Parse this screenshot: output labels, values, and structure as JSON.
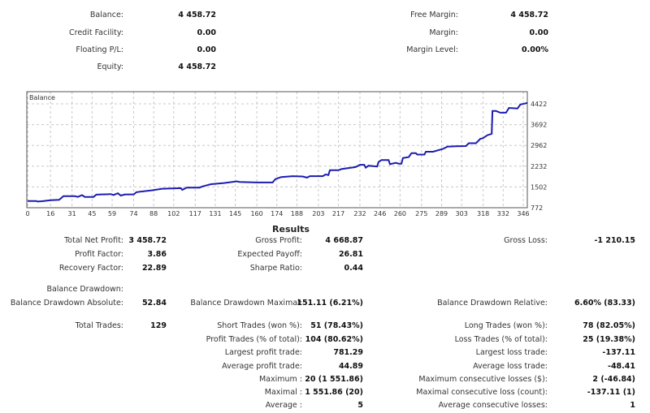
{
  "account": {
    "left": [
      {
        "label": "Balance:",
        "value": "4 458.72"
      },
      {
        "label": "Credit Facility:",
        "value": "0.00"
      },
      {
        "label": "Floating P/L:",
        "value": "0.00"
      },
      {
        "label": "Equity:",
        "value": "4 458.72"
      }
    ],
    "right": [
      {
        "label": "Free Margin:",
        "value": "4 458.72"
      },
      {
        "label": "Margin:",
        "value": "0.00"
      },
      {
        "label": "Margin Level:",
        "value": "0.00%"
      }
    ]
  },
  "chart_data": {
    "type": "line",
    "title": "Balance",
    "series": [
      {
        "color": "#1c1cb0",
        "x": [
          0,
          6,
          7,
          10,
          16,
          22,
          25,
          33,
          35,
          38,
          40,
          46,
          48,
          58,
          60,
          63,
          65,
          68,
          74,
          76,
          87,
          94,
          107,
          108,
          111,
          120,
          122,
          128,
          137,
          146,
          148,
          160,
          171,
          173,
          177,
          185,
          192,
          195,
          197,
          206,
          208,
          210,
          211,
          217,
          219,
          229,
          232,
          235,
          236,
          238,
          244,
          245,
          247,
          252,
          253,
          257,
          259,
          261,
          262,
          266,
          268,
          271,
          272,
          277,
          278,
          283,
          290,
          293,
          299,
          306,
          308,
          313,
          316,
          318,
          321,
          324,
          324.5,
          327,
          330,
          334,
          336,
          342,
          344,
          347,
          349
        ],
        "y": [
          1010,
          1010,
          990,
          1000,
          1037,
          1048,
          1180,
          1180,
          1150,
          1215,
          1150,
          1150,
          1230,
          1250,
          1220,
          1280,
          1200,
          1240,
          1240,
          1320,
          1385,
          1440,
          1460,
          1400,
          1480,
          1480,
          1520,
          1600,
          1640,
          1700,
          1680,
          1660,
          1660,
          1780,
          1850,
          1880,
          1870,
          1830,
          1880,
          1880,
          1940,
          1920,
          2090,
          2090,
          2130,
          2200,
          2280,
          2280,
          2180,
          2250,
          2220,
          2380,
          2450,
          2450,
          2300,
          2350,
          2320,
          2320,
          2520,
          2550,
          2690,
          2690,
          2640,
          2640,
          2740,
          2740,
          2840,
          2920,
          2930,
          2940,
          3040,
          3040,
          3190,
          3220,
          3320,
          3370,
          4170,
          4170,
          4110,
          4110,
          4280,
          4260,
          4400,
          4430,
          4459
        ]
      }
    ],
    "xticks": [
      0,
      16,
      31,
      45,
      59,
      74,
      88,
      102,
      117,
      131,
      145,
      160,
      174,
      188,
      203,
      217,
      232,
      246,
      260,
      275,
      289,
      303,
      318,
      332,
      346
    ],
    "yticks": [
      772,
      1502,
      2232,
      2962,
      3692,
      4422
    ],
    "xlim": [
      0,
      349
    ],
    "ylim": [
      772,
      4480
    ],
    "grid": true
  },
  "results": {
    "title": "Results",
    "col1": [
      {
        "row": 0,
        "label": "Total Net Profit:",
        "value": "3 458.72"
      },
      {
        "row": 1,
        "label": "Profit Factor:",
        "value": "3.86"
      },
      {
        "row": 2,
        "label": "Recovery Factor:",
        "value": "22.89"
      },
      {
        "row": 3,
        "label": "Balance Drawdown:",
        "value": ""
      },
      {
        "row": 4,
        "label": "Balance Drawdown Absolute:",
        "value": "52.84"
      },
      {
        "row": 5,
        "label": "Total Trades:",
        "value": "129"
      }
    ],
    "col2": [
      {
        "row": 0,
        "label": "Gross Profit:",
        "value": "4 668.87"
      },
      {
        "row": 1,
        "label": "Expected Payoff:",
        "value": "26.81"
      },
      {
        "row": 2,
        "label": "Sharpe Ratio:",
        "value": "0.44"
      },
      {
        "row": 4,
        "label": "Balance Drawdown Maximal:",
        "value": "151.11 (6.21%)"
      },
      {
        "row": 5,
        "label": "Short Trades (won %):",
        "value": "51 (78.43%)"
      },
      {
        "row": 6,
        "label": "Profit Trades (% of total):",
        "value": "104 (80.62%)"
      },
      {
        "row": 7,
        "label": "Largest profit trade:",
        "value": "781.29"
      },
      {
        "row": 8,
        "label": "Average profit trade:",
        "value": "44.89"
      },
      {
        "row": 9,
        "label": "Maximum :",
        "value": "20 (1 551.86)"
      },
      {
        "row": 10,
        "label": "Maximal :",
        "value": "1 551.86 (20)"
      },
      {
        "row": 11,
        "label": "Average :",
        "value": "5"
      }
    ],
    "col3": [
      {
        "row": 0,
        "label": "Gross Loss:",
        "value": "-1 210.15"
      },
      {
        "row": 4,
        "label": "Balance Drawdown Relative:",
        "value": "6.60% (83.33)"
      },
      {
        "row": 5,
        "label": "Long Trades (won %):",
        "value": "78 (82.05%)"
      },
      {
        "row": 6,
        "label": "Loss Trades (% of total):",
        "value": "25 (19.38%)"
      },
      {
        "row": 7,
        "label": "Largest loss trade:",
        "value": "-137.11"
      },
      {
        "row": 8,
        "label": "Average loss trade:",
        "value": "-48.41"
      },
      {
        "row": 9,
        "label": "Maximum consecutive losses ($):",
        "value": "2 (-46.84)"
      },
      {
        "row": 10,
        "label": "Maximal consecutive loss (count):",
        "value": "-137.11 (1)"
      },
      {
        "row": 11,
        "label": "Average consecutive losses:",
        "value": "1"
      }
    ]
  }
}
